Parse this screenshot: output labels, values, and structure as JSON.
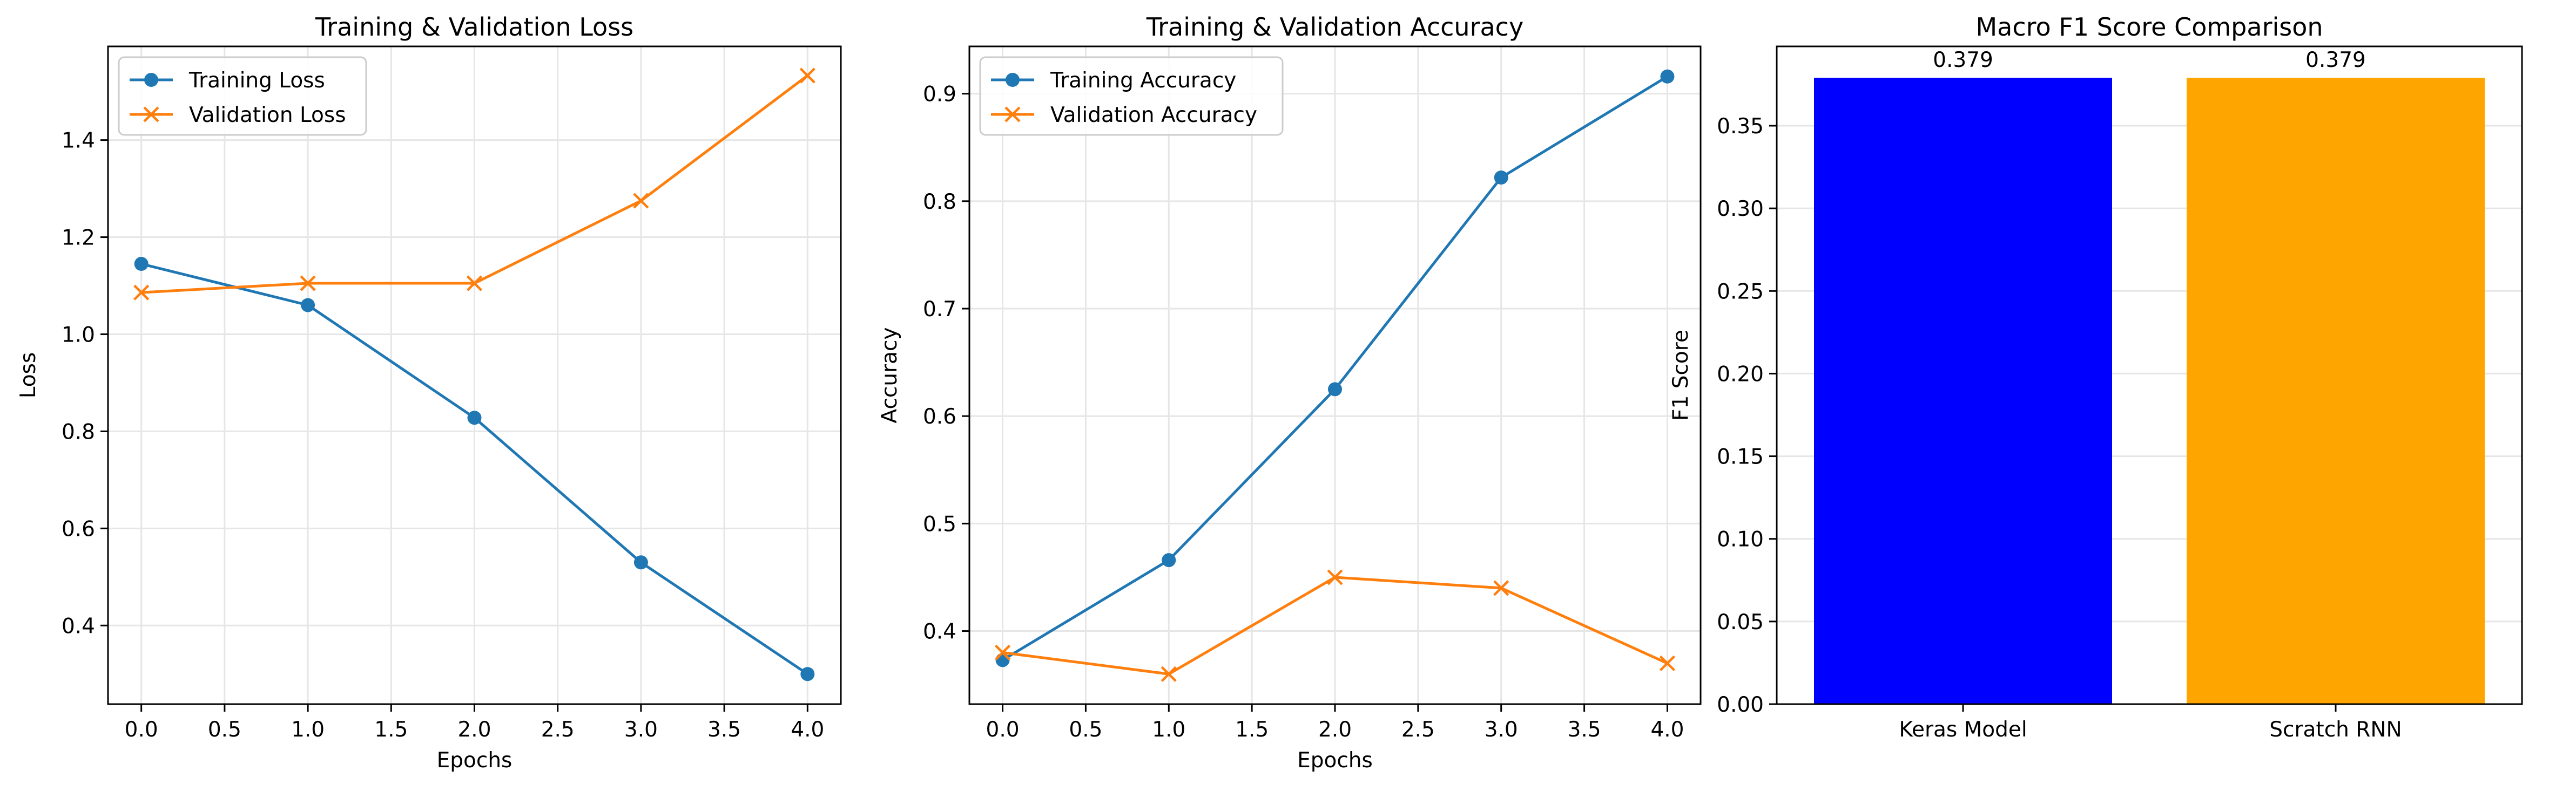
{
  "chart_data": [
    {
      "type": "line",
      "title": "Training & Validation Loss",
      "xlabel": "Epochs",
      "ylabel": "Loss",
      "x": [
        0,
        1,
        2,
        3,
        4
      ],
      "xlim": [
        -0.2,
        4.2
      ],
      "ylim": [
        0.238,
        1.593
      ],
      "xticks": [
        "0.0",
        "0.5",
        "1.0",
        "1.5",
        "2.0",
        "2.5",
        "3.0",
        "3.5",
        "4.0"
      ],
      "yticks": [
        "0.4",
        "0.6",
        "0.8",
        "1.0",
        "1.2",
        "1.4"
      ],
      "grid": true,
      "legend_position": "upper-left",
      "series": [
        {
          "name": "Training Loss",
          "values": [
            1.145,
            1.06,
            0.828,
            0.53,
            0.3
          ],
          "color": "#1f77b4",
          "marker": "circle"
        },
        {
          "name": "Validation Loss",
          "values": [
            1.086,
            1.105,
            1.105,
            1.275,
            1.533
          ],
          "color": "#ff7f0e",
          "marker": "x"
        }
      ]
    },
    {
      "type": "line",
      "title": "Training & Validation Accuracy",
      "xlabel": "Epochs",
      "ylabel": "Accuracy",
      "x": [
        0,
        1,
        2,
        3,
        4
      ],
      "xlim": [
        -0.2,
        4.2
      ],
      "ylim": [
        0.332,
        0.944
      ],
      "xticks": [
        "0.0",
        "0.5",
        "1.0",
        "1.5",
        "2.0",
        "2.5",
        "3.0",
        "3.5",
        "4.0"
      ],
      "yticks": [
        "0.4",
        "0.5",
        "0.6",
        "0.7",
        "0.8",
        "0.9"
      ],
      "grid": true,
      "legend_position": "upper-left",
      "series": [
        {
          "name": "Training Accuracy",
          "values": [
            0.373,
            0.466,
            0.625,
            0.822,
            0.916
          ],
          "color": "#1f77b4",
          "marker": "circle"
        },
        {
          "name": "Validation Accuracy",
          "values": [
            0.38,
            0.36,
            0.45,
            0.44,
            0.37
          ],
          "color": "#ff7f0e",
          "marker": "x"
        }
      ]
    },
    {
      "type": "bar",
      "title": "Macro F1 Score Comparison",
      "ylabel": "F1 Score",
      "categories": [
        "Keras Model",
        "Scratch RNN"
      ],
      "values": [
        0.379,
        0.379
      ],
      "value_labels": [
        "0.379",
        "0.379"
      ],
      "colors": [
        "#0000ff",
        "#ffa500"
      ],
      "ylim": [
        0,
        0.398
      ],
      "yticks": [
        "0.00",
        "0.05",
        "0.10",
        "0.15",
        "0.20",
        "0.25",
        "0.30",
        "0.35"
      ],
      "grid": true
    }
  ]
}
